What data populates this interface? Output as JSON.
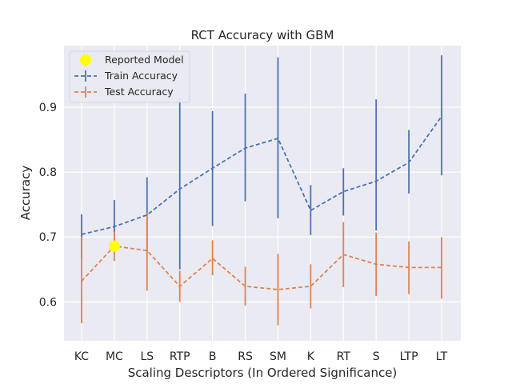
{
  "chart_data": {
    "type": "line",
    "title": "RCT Accuracy with GBM",
    "xlabel": "Scaling Descriptors (In Ordered Significance)",
    "ylabel": "Accuracy",
    "categories": [
      "KC",
      "MC",
      "LS",
      "RTP",
      "B",
      "RS",
      "SM",
      "K",
      "RT",
      "S",
      "LTP",
      "LT"
    ],
    "ylim": [
      0.54,
      0.995
    ],
    "yticks": [
      0.6,
      0.7,
      0.8,
      0.9
    ],
    "grid": true,
    "legend_position": "top-left",
    "series": [
      {
        "name": "Train Accuracy",
        "color": "#4c72b0",
        "values": [
          0.704,
          0.716,
          0.734,
          0.774,
          0.806,
          0.837,
          0.852,
          0.741,
          0.77,
          0.786,
          0.815,
          0.886
        ],
        "err_low": [
          0.668,
          0.678,
          0.676,
          0.65,
          0.717,
          0.755,
          0.729,
          0.703,
          0.733,
          0.71,
          0.767,
          0.795
        ],
        "err_high": [
          0.735,
          0.757,
          0.792,
          0.913,
          0.894,
          0.921,
          0.977,
          0.78,
          0.806,
          0.912,
          0.865,
          0.98
        ]
      },
      {
        "name": "Test Accuracy",
        "color": "#dd8452",
        "values": [
          0.632,
          0.686,
          0.679,
          0.624,
          0.667,
          0.624,
          0.619,
          0.624,
          0.673,
          0.658,
          0.653,
          0.653
        ],
        "err_low": [
          0.567,
          0.663,
          0.617,
          0.6,
          0.641,
          0.594,
          0.564,
          0.59,
          0.623,
          0.609,
          0.612,
          0.605
        ],
        "err_high": [
          0.7,
          0.708,
          0.737,
          0.648,
          0.695,
          0.654,
          0.674,
          0.658,
          0.723,
          0.707,
          0.693,
          0.7
        ]
      }
    ],
    "highlight": {
      "name": "Reported Model",
      "category": "MC",
      "value": 0.686,
      "color": "#ffff00"
    }
  }
}
